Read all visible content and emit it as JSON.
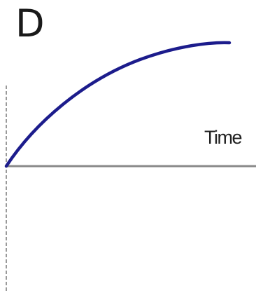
{
  "panel": {
    "letter": "D",
    "x_axis_label": "Time"
  },
  "colors": {
    "curve": "#1c1c8c",
    "x_axis": "#8a8a8a",
    "y_axis": "#9a9a9a",
    "text": "#1a1a1a"
  },
  "icons": {
    "curve": "rising-concave-down-curve"
  }
}
